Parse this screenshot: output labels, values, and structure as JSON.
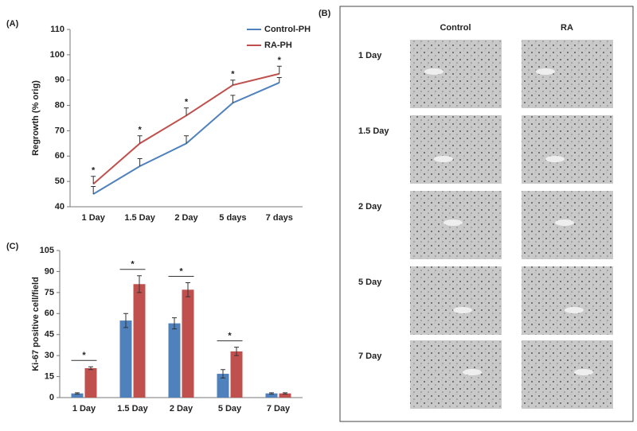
{
  "chart_data": [
    {
      "type": "line",
      "panel_label": "(A)",
      "y_label": "Regrowth (% orig)",
      "categories": [
        "1 Day",
        "1.5 Day",
        "2 Day",
        "5 days",
        "7 days"
      ],
      "series": [
        {
          "name": "Control-PH",
          "color": "#4f81bd",
          "values": [
            45,
            56,
            65,
            81,
            89
          ],
          "errors": [
            3,
            3,
            3,
            3,
            2
          ]
        },
        {
          "name": "RA-PH",
          "color": "#c0504d",
          "values": [
            49,
            65,
            76,
            88,
            92.5
          ],
          "errors": [
            3,
            3,
            3,
            2,
            3
          ]
        }
      ],
      "annotations": [
        "*",
        "*",
        "*",
        "*",
        "*"
      ],
      "ylim": [
        40,
        110
      ],
      "yticks": [
        40,
        50,
        60,
        70,
        80,
        90,
        100,
        110
      ],
      "legend": "upper right"
    },
    {
      "type": "bar",
      "panel_label": "(C)",
      "y_label": "Ki-67 positive cell/field",
      "categories": [
        "1 Day",
        "1.5 Day",
        "2 Day",
        "5 Day",
        "7 Day"
      ],
      "series": [
        {
          "color": "#4f81bd",
          "values": [
            3,
            55,
            53,
            17,
            3
          ],
          "errors": [
            0.5,
            5,
            4,
            3,
            0.5
          ]
        },
        {
          "color": "#c0504d",
          "values": [
            21,
            81,
            77,
            33,
            3
          ],
          "errors": [
            1,
            6,
            5,
            3,
            0.5
          ]
        }
      ],
      "annotations": [
        "*",
        "*",
        "*",
        "*"
      ],
      "ylim": [
        0,
        105
      ],
      "yticks": [
        0,
        15,
        30,
        45,
        60,
        75,
        90,
        105
      ]
    }
  ],
  "micrographs": {
    "panel_label": "(B)",
    "columns": [
      "Control",
      "RA"
    ],
    "rows": [
      "1 Day",
      "1.5 Day",
      "2 Day",
      "5 Day",
      "7 Day"
    ]
  }
}
